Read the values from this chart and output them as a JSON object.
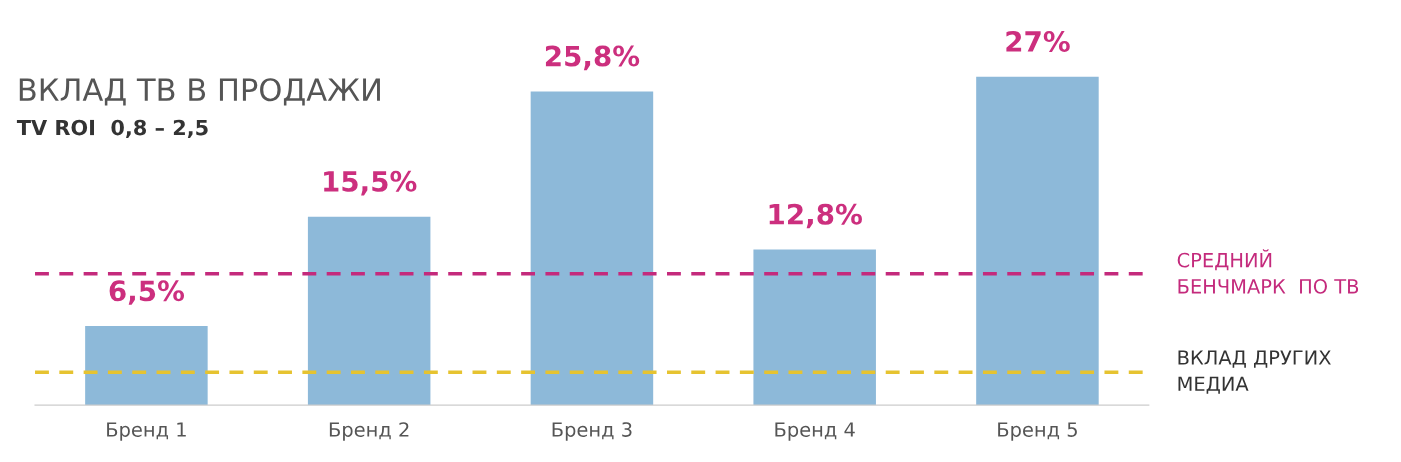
{
  "chart_data": {
    "type": "bar",
    "title": "ВКЛАД ТВ В ПРОДАЖИ",
    "subtitle": "TV ROI  0,8 – 2,5",
    "categories": [
      "Бренд 1",
      "Бренд 2",
      "Бренд 3",
      "Бренд 4",
      "Бренд 5"
    ],
    "values": [
      6.5,
      15.5,
      25.8,
      12.8,
      27
    ],
    "value_labels": [
      "6,5%",
      "15,5%",
      "25,8%",
      "12,8%",
      "27%"
    ],
    "color": "#8db9d9",
    "ref_lines": [
      {
        "axis": "y",
        "value": 10.8,
        "label": "СРЕДНИЙ\nБЕНЧМАРК  ПО ТВ",
        "color": "#c42a7c",
        "line_style": "dashed"
      },
      {
        "axis": "y",
        "value": 2.7,
        "label": "ВКЛАД ДРУГИХ\nМЕДИА",
        "color": "#e6c330",
        "line_style": "dashed"
      }
    ],
    "grid": false,
    "legend": false
  }
}
